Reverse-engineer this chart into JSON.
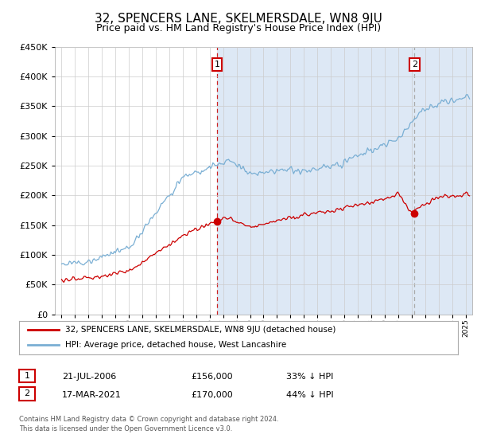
{
  "title": "32, SPENCERS LANE, SKELMERSDALE, WN8 9JU",
  "subtitle": "Price paid vs. HM Land Registry's House Price Index (HPI)",
  "title_fontsize": 11,
  "subtitle_fontsize": 9,
  "background_color": "#ffffff",
  "plot_background": "#ffffff",
  "plot_fill_color": "#dde8f5",
  "grid_color": "#cccccc",
  "red_line_color": "#cc0000",
  "blue_line_color": "#7aafd4",
  "transaction1_x": 2006.55,
  "transaction1_y": 156000,
  "transaction2_x": 2021.21,
  "transaction2_y": 170000,
  "dashed1_color": "#cc2222",
  "dashed2_color": "#aaaaaa",
  "legend_label_red": "32, SPENCERS LANE, SKELMERSDALE, WN8 9JU (detached house)",
  "legend_label_blue": "HPI: Average price, detached house, West Lancashire",
  "table_row1": [
    "1",
    "21-JUL-2006",
    "£156,000",
    "33% ↓ HPI"
  ],
  "table_row2": [
    "2",
    "17-MAR-2021",
    "£170,000",
    "44% ↓ HPI"
  ],
  "footer": "Contains HM Land Registry data © Crown copyright and database right 2024.\nThis data is licensed under the Open Government Licence v3.0.",
  "ylim": [
    0,
    450000
  ],
  "yticks": [
    0,
    50000,
    100000,
    150000,
    200000,
    250000,
    300000,
    350000,
    400000,
    450000
  ],
  "xlim": [
    1994.5,
    2025.5
  ]
}
